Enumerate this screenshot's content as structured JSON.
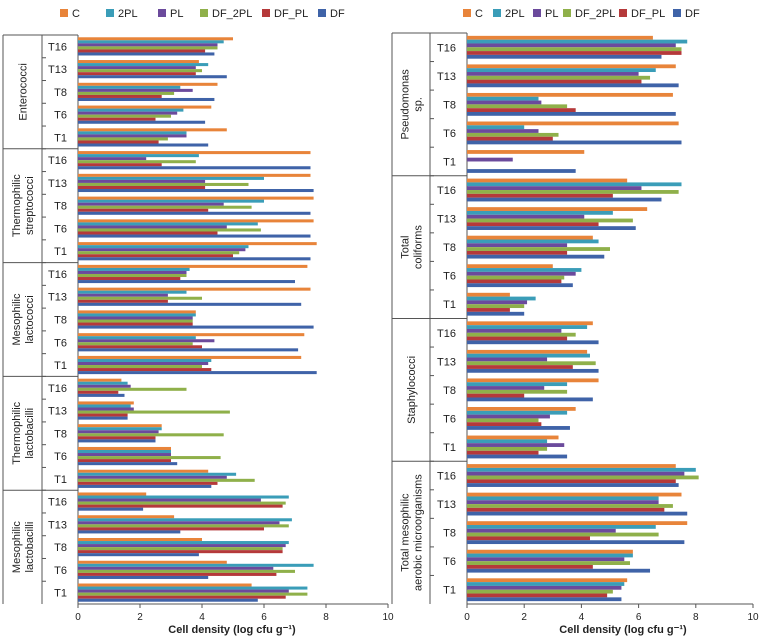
{
  "chart_data": [
    {
      "type": "bar",
      "orientation": "horizontal",
      "xlabel": "Cell density (log cfu g⁻¹)",
      "xlim": [
        0,
        10
      ],
      "xticks": [
        0,
        2,
        4,
        6,
        8,
        10
      ],
      "series": [
        {
          "name": "C",
          "color": "#E8843A"
        },
        {
          "name": "2PL",
          "color": "#3A9DB8"
        },
        {
          "name": "PL",
          "color": "#6B4A9C"
        },
        {
          "name": "DF_2PL",
          "color": "#8FB04A"
        },
        {
          "name": "DF_PL",
          "color": "#B5393A"
        },
        {
          "name": "DF",
          "color": "#3F63A8"
        }
      ],
      "groups": [
        {
          "label": "Enterococci",
          "categories": [
            "T16",
            "T13",
            "T8",
            "T6",
            "T1"
          ],
          "values": {
            "C": [
              5.0,
              3.9,
              4.5,
              4.3,
              4.8
            ],
            "2PL": [
              4.7,
              4.2,
              3.3,
              3.4,
              3.5
            ],
            "PL": [
              4.5,
              3.8,
              3.7,
              3.2,
              3.5
            ],
            "DF_2PL": [
              4.5,
              4.0,
              3.1,
              3.0,
              2.9
            ],
            "DF_PL": [
              4.1,
              3.8,
              2.7,
              2.5,
              2.6
            ],
            "DF": [
              4.4,
              4.8,
              4.4,
              4.1,
              4.2
            ]
          }
        },
        {
          "label": "Thermophilic streptococci",
          "categories": [
            "T16",
            "T13",
            "T8",
            "T6",
            "T1"
          ],
          "values": {
            "C": [
              7.5,
              7.5,
              7.6,
              7.6,
              7.7
            ],
            "2PL": [
              3.9,
              6.0,
              6.0,
              5.8,
              5.5
            ],
            "PL": [
              2.2,
              4.1,
              4.7,
              4.8,
              5.4
            ],
            "DF_2PL": [
              3.8,
              5.5,
              5.6,
              5.9,
              5.2
            ],
            "DF_PL": [
              2.7,
              4.1,
              4.2,
              4.5,
              5.0
            ],
            "DF": [
              7.5,
              7.6,
              7.5,
              7.5,
              7.5
            ]
          }
        },
        {
          "label": "Mesophilic lactococci",
          "categories": [
            "T16",
            "T13",
            "T8",
            "T6",
            "T1"
          ],
          "values": {
            "C": [
              7.4,
              7.5,
              3.8,
              7.3,
              7.2
            ],
            "2PL": [
              3.6,
              3.5,
              3.8,
              3.8,
              4.3
            ],
            "PL": [
              3.5,
              2.9,
              3.7,
              4.4,
              4.2
            ],
            "DF_2PL": [
              3.5,
              4.0,
              3.7,
              3.7,
              4.0
            ],
            "DF_PL": [
              3.3,
              2.9,
              3.7,
              4.0,
              4.3
            ],
            "DF": [
              7.0,
              7.2,
              7.6,
              7.1,
              7.7
            ]
          }
        },
        {
          "label": "Thermophilic lactobacilli",
          "categories": [
            "T16",
            "T13",
            "T8",
            "T6",
            "T1"
          ],
          "values": {
            "C": [
              1.4,
              1.8,
              2.7,
              3.0,
              4.2
            ],
            "2PL": [
              1.6,
              1.7,
              2.7,
              3.0,
              5.1
            ],
            "PL": [
              1.7,
              1.8,
              2.6,
              3.0,
              4.8
            ],
            "DF_2PL": [
              3.5,
              4.9,
              4.7,
              4.6,
              5.7
            ],
            "DF_PL": [
              1.3,
              1.6,
              2.5,
              3.0,
              4.5
            ],
            "DF": [
              1.5,
              1.6,
              2.5,
              3.2,
              4.3
            ]
          }
        },
        {
          "label": "Mesophilic lactobacilli",
          "categories": [
            "T16",
            "T13",
            "T8",
            "T6",
            "T1"
          ],
          "values": {
            "C": [
              2.2,
              3.1,
              4.0,
              4.8,
              5.6
            ],
            "2PL": [
              6.8,
              6.9,
              6.8,
              7.6,
              7.4
            ],
            "PL": [
              5.9,
              6.5,
              6.7,
              6.3,
              6.8
            ],
            "DF_2PL": [
              6.7,
              6.8,
              6.6,
              7.0,
              7.4
            ],
            "DF_PL": [
              6.6,
              6.0,
              6.6,
              6.4,
              6.7
            ],
            "DF": [
              2.1,
              3.3,
              3.9,
              4.2,
              5.8
            ]
          }
        }
      ]
    },
    {
      "type": "bar",
      "orientation": "horizontal",
      "xlabel": "Cell density (log cfu g⁻¹)",
      "xlim": [
        0,
        10
      ],
      "xticks": [
        0,
        2,
        4,
        6,
        8,
        10
      ],
      "series": [
        {
          "name": "C",
          "color": "#E8843A"
        },
        {
          "name": "2PL",
          "color": "#3A9DB8"
        },
        {
          "name": "PL",
          "color": "#6B4A9C"
        },
        {
          "name": "DF_2PL",
          "color": "#8FB04A"
        },
        {
          "name": "DF_PL",
          "color": "#B5393A"
        },
        {
          "name": "DF",
          "color": "#3F63A8"
        }
      ],
      "groups": [
        {
          "label": "Pseudomonas sp.",
          "categories": [
            "T16",
            "T13",
            "T8",
            "T6",
            "T1"
          ],
          "values": {
            "C": [
              6.5,
              7.3,
              7.2,
              7.4,
              4.1
            ],
            "2PL": [
              7.7,
              6.6,
              2.5,
              2.0,
              0
            ],
            "PL": [
              7.3,
              6.0,
              2.6,
              2.5,
              1.6
            ],
            "DF_2PL": [
              7.5,
              6.4,
              3.5,
              3.2,
              0
            ],
            "DF_PL": [
              7.5,
              6.1,
              3.8,
              3.0,
              0
            ],
            "DF": [
              6.8,
              7.4,
              7.3,
              7.5,
              3.8
            ]
          }
        },
        {
          "label": "Total coliforms",
          "categories": [
            "T16",
            "T13",
            "T8",
            "T6",
            "T1"
          ],
          "values": {
            "C": [
              5.6,
              6.3,
              4.4,
              3.0,
              1.5
            ],
            "2PL": [
              7.5,
              5.1,
              4.6,
              4.0,
              2.4
            ],
            "PL": [
              6.1,
              4.1,
              3.5,
              3.8,
              2.1
            ],
            "DF_2PL": [
              7.4,
              5.8,
              5.0,
              3.4,
              2.0
            ],
            "DF_PL": [
              5.1,
              4.6,
              3.5,
              3.3,
              1.5
            ],
            "DF": [
              6.8,
              5.9,
              4.8,
              3.7,
              2.0
            ]
          }
        },
        {
          "label": "Staphylococci",
          "categories": [
            "T16",
            "T13",
            "T8",
            "T6",
            "T1"
          ],
          "values": {
            "C": [
              4.4,
              4.2,
              4.6,
              3.8,
              3.2
            ],
            "2PL": [
              4.2,
              4.3,
              3.5,
              3.5,
              2.8
            ],
            "PL": [
              3.3,
              2.8,
              2.7,
              2.9,
              3.4
            ],
            "DF_2PL": [
              3.8,
              4.5,
              3.5,
              2.5,
              2.8
            ],
            "DF_PL": [
              3.5,
              3.7,
              2.0,
              2.6,
              2.5
            ],
            "DF": [
              4.6,
              4.6,
              4.4,
              3.6,
              3.5
            ]
          }
        },
        {
          "label": "Total mesophilic aerobic microorganisms",
          "categories": [
            "T16",
            "T13",
            "T8",
            "T6",
            "T1"
          ],
          "values": {
            "C": [
              7.3,
              7.5,
              7.7,
              5.8,
              5.6
            ],
            "2PL": [
              8.0,
              6.7,
              6.6,
              5.8,
              5.5
            ],
            "PL": [
              7.6,
              6.7,
              5.2,
              5.5,
              5.4
            ],
            "DF_2PL": [
              8.1,
              7.2,
              6.7,
              5.7,
              5.1
            ],
            "DF_PL": [
              7.3,
              6.9,
              4.3,
              4.4,
              4.9
            ],
            "DF": [
              7.4,
              7.7,
              7.6,
              6.4,
              5.4
            ]
          }
        }
      ]
    }
  ]
}
